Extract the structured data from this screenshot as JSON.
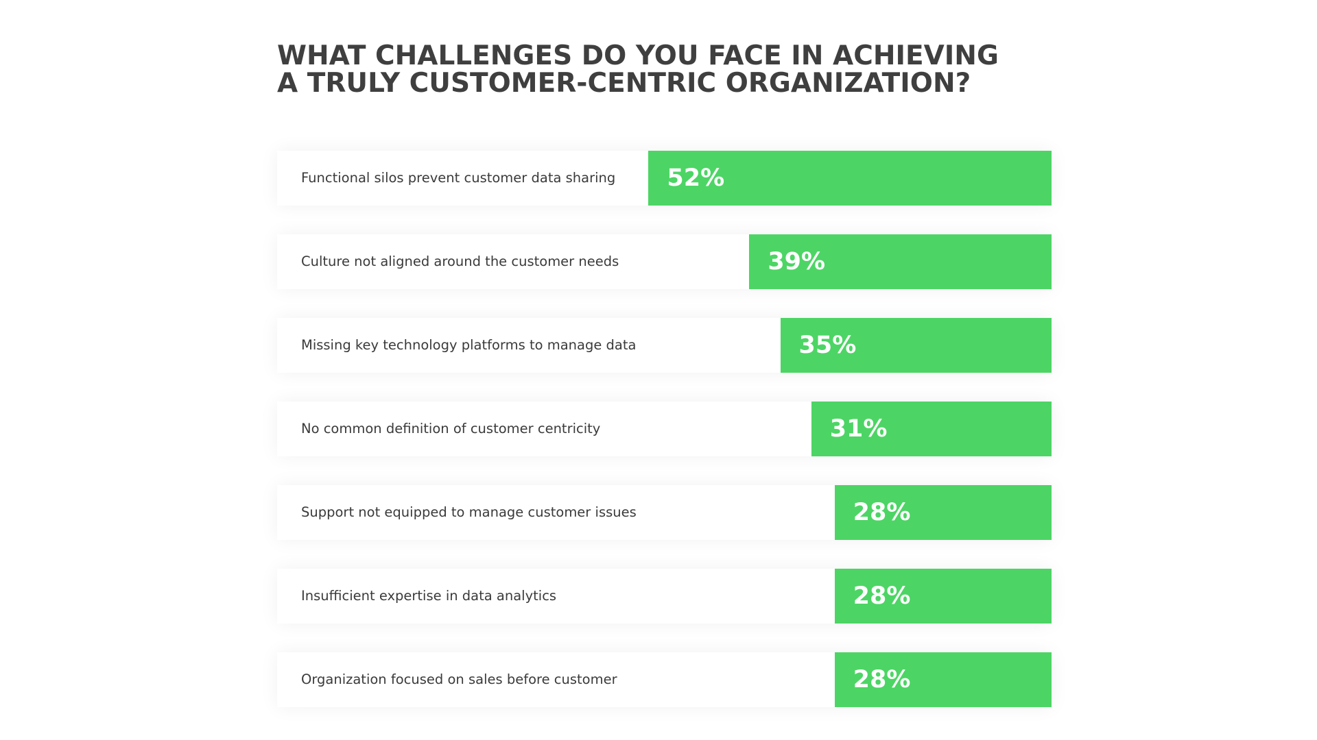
{
  "chart_data": {
    "type": "bar",
    "orientation": "horizontal",
    "title_lines": [
      "WHAT CHALLENGES DO YOU FACE IN ACHIEVING",
      "A TRULY CUSTOMER-CENTRIC ORGANIZATION?"
    ],
    "categories": [
      "Functional silos prevent customer data sharing",
      "Culture not aligned around the customer needs",
      "Missing key technology platforms to manage data",
      "No common definition of customer centricity",
      "Support not equipped to manage customer issues",
      "Insufficient expertise in data analytics",
      "Organization focused on sales before customer"
    ],
    "values": [
      52,
      39,
      35,
      31,
      28,
      28,
      28
    ],
    "value_labels": [
      "52%",
      "39%",
      "35%",
      "31%",
      "28%",
      "28%",
      "28%"
    ],
    "unit": "%",
    "bar_color": "#4cd564",
    "label_color": "#3a3a3a",
    "title_color": "#3f3f3f",
    "grid": false
  }
}
